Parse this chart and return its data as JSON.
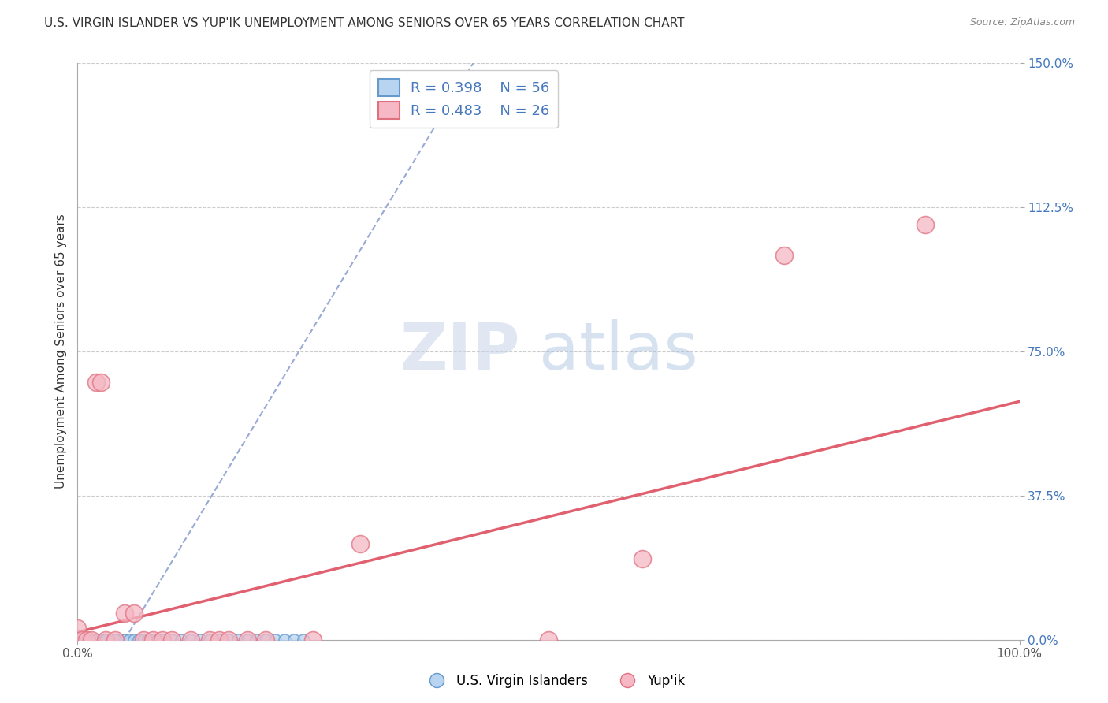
{
  "title": "U.S. VIRGIN ISLANDER VS YUP'IK UNEMPLOYMENT AMONG SENIORS OVER 65 YEARS CORRELATION CHART",
  "source": "Source: ZipAtlas.com",
  "ylabel": "Unemployment Among Seniors over 65 years",
  "xlim": [
    0,
    1.0
  ],
  "ylim": [
    0,
    1.5
  ],
  "xticks": [
    0.0,
    1.0
  ],
  "xticklabels": [
    "0.0%",
    "100.0%"
  ],
  "yticks": [
    0.0,
    0.375,
    0.75,
    1.125,
    1.5
  ],
  "yticklabels": [
    "0.0%",
    "37.5%",
    "75.0%",
    "112.5%",
    "150.0%"
  ],
  "blue_R": "0.398",
  "blue_N": "56",
  "pink_R": "0.483",
  "pink_N": "26",
  "blue_label": "U.S. Virgin Islanders",
  "pink_label": "Yup'ik",
  "blue_color": "#b8d4f0",
  "pink_color": "#f5b8c4",
  "blue_edge_color": "#6699cc",
  "pink_edge_color": "#e07080",
  "legend_R_N_color": "#4477bb",
  "watermark_zip": "ZIP",
  "watermark_atlas": "atlas",
  "watermark_zip_color": "#c8d4e8",
  "watermark_atlas_color": "#a8c0e0",
  "blue_scatter_x": [
    0.0,
    0.0,
    0.0,
    0.0,
    0.0,
    0.005,
    0.005,
    0.005,
    0.005,
    0.01,
    0.01,
    0.01,
    0.01,
    0.01,
    0.015,
    0.015,
    0.02,
    0.02,
    0.02,
    0.025,
    0.025,
    0.03,
    0.03,
    0.035,
    0.04,
    0.04,
    0.05,
    0.05,
    0.055,
    0.06,
    0.065,
    0.07,
    0.075,
    0.08,
    0.085,
    0.09,
    0.09,
    0.1,
    0.11,
    0.12,
    0.13,
    0.14,
    0.15,
    0.16,
    0.17,
    0.18,
    0.19,
    0.2,
    0.21,
    0.22,
    0.23,
    0.24,
    0.01,
    0.02,
    0.03,
    0.04
  ],
  "blue_scatter_y": [
    0.0,
    0.0,
    0.0,
    0.0,
    0.0,
    0.0,
    0.0,
    0.0,
    0.0,
    0.0,
    0.0,
    0.0,
    0.0,
    0.0,
    0.0,
    0.0,
    0.0,
    0.0,
    0.0,
    0.0,
    0.0,
    0.0,
    0.0,
    0.0,
    0.0,
    0.0,
    0.0,
    0.0,
    0.0,
    0.0,
    0.0,
    0.0,
    0.0,
    0.0,
    0.0,
    0.0,
    0.0,
    0.0,
    0.0,
    0.0,
    0.0,
    0.0,
    0.0,
    0.0,
    0.0,
    0.0,
    0.0,
    0.0,
    0.0,
    0.0,
    0.0,
    0.0,
    0.0,
    0.0,
    0.0,
    0.0
  ],
  "pink_scatter_x": [
    0.0,
    0.005,
    0.01,
    0.015,
    0.02,
    0.025,
    0.03,
    0.04,
    0.05,
    0.06,
    0.07,
    0.08,
    0.09,
    0.1,
    0.12,
    0.14,
    0.15,
    0.16,
    0.18,
    0.2,
    0.25,
    0.3,
    0.5,
    0.6,
    0.75,
    0.9
  ],
  "pink_scatter_y": [
    0.03,
    0.0,
    0.0,
    0.0,
    0.67,
    0.67,
    0.0,
    0.0,
    0.07,
    0.07,
    0.0,
    0.0,
    0.0,
    0.0,
    0.0,
    0.0,
    0.0,
    0.0,
    0.0,
    0.0,
    0.0,
    0.25,
    0.0,
    0.21,
    1.0,
    1.08
  ],
  "pink_line_x": [
    0.0,
    1.0
  ],
  "pink_line_y": [
    0.02,
    0.62
  ],
  "blue_line_x": [
    0.05,
    0.42
  ],
  "blue_line_y": [
    0.0,
    1.5
  ],
  "background_color": "#ffffff",
  "grid_color": "#cccccc",
  "title_fontsize": 11,
  "axis_label_fontsize": 11,
  "tick_fontsize": 11,
  "legend_fontsize": 13
}
